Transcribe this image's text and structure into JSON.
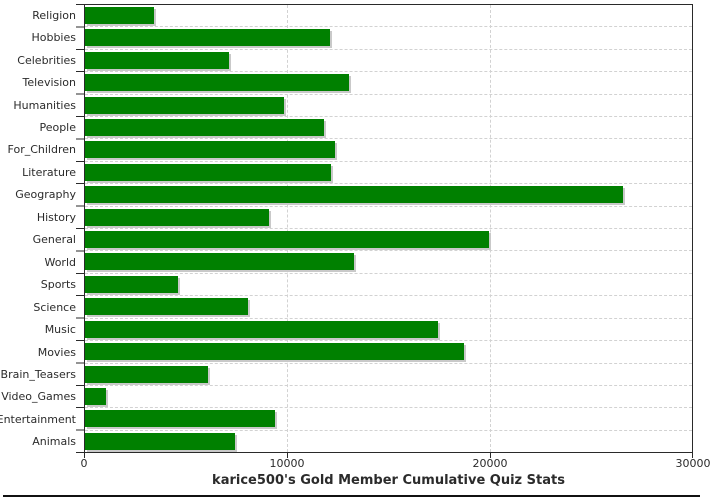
{
  "chart_data": {
    "type": "bar",
    "orientation": "horizontal",
    "title": "karice500's Gold Member Cumulative Quiz Stats",
    "xlabel": "",
    "ylabel": "",
    "categories": [
      "Religion",
      "Hobbies",
      "Celebrities",
      "Television",
      "Humanities",
      "People",
      "For_Children",
      "Literature",
      "Geography",
      "History",
      "General",
      "World",
      "Sports",
      "Science",
      "Music",
      "Movies",
      "Brain_Teasers",
      "Video_Games",
      "Entertainment",
      "Animals"
    ],
    "values": [
      3400,
      12100,
      7100,
      13050,
      9850,
      11820,
      12360,
      12150,
      26600,
      9100,
      19950,
      13300,
      4580,
      8080,
      17440,
      18720,
      6060,
      1050,
      9400,
      7390
    ],
    "xlim": [
      0,
      30000
    ],
    "x_ticks": [
      0,
      10000,
      20000,
      30000
    ],
    "x_tick_labels": [
      "0",
      "10000",
      "20000",
      "30000"
    ],
    "grid": "dashed",
    "legend_position": "none",
    "bar_color": "#008000",
    "bar_shadow_color": "#c9c9c9",
    "gridline_color": "#d2d2d2",
    "axis_color": "#2a2a2a"
  }
}
